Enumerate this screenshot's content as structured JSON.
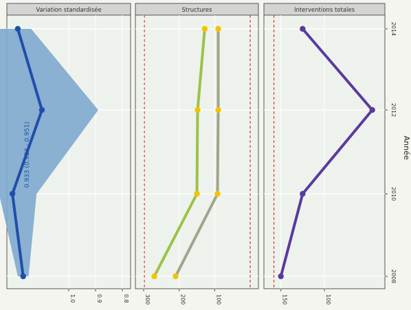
{
  "chart_data": [
    {
      "type": "line",
      "title": "Variation standardisée",
      "x_axis_title": "Année",
      "x_ticks": [
        "2008",
        "2010",
        "2012",
        "2014"
      ],
      "ylim": [
        0.8,
        1.2
      ],
      "y_ticks": [
        "1.0",
        "0.9",
        "0.8"
      ],
      "x": [
        "2008",
        "2010",
        "2012",
        "2014"
      ],
      "series": [
        {
          "values": [
            1.17,
            1.21,
            1.1,
            1.19
          ],
          "color": "#1f4fa8"
        }
      ],
      "band": {
        "lower": [
          1.15,
          1.12,
          0.89,
          1.14
        ],
        "upper": [
          1.19,
          1.26,
          1.3,
          1.28
        ],
        "color": "#7ea9cf"
      },
      "annotation": "0.933 (0.926 - 0.951)"
    },
    {
      "type": "line",
      "title": "Structures",
      "x_ticks": [
        "2008",
        "2010",
        "2012",
        "2014"
      ],
      "ylim": [
        0,
        300
      ],
      "y_ticks": [
        "100",
        "200",
        "300"
      ],
      "x": [
        "2008",
        "2010",
        "2012",
        "2014"
      ],
      "series": [
        {
          "values": [
            210,
            92,
            90,
            90
          ],
          "color": "#a0a48c",
          "marker_color": "#f2c400"
        },
        {
          "values": [
            270,
            150,
            148,
            128
          ],
          "color": "#9bc24b",
          "marker_color": "#f2c400"
        }
      ],
      "reference_lines": [
        {
          "value": 0,
          "color": "#d43a3a",
          "style": "dashed"
        },
        {
          "value": 298,
          "color": "#d43a3a",
          "style": "dashed"
        }
      ]
    },
    {
      "type": "line",
      "title": "Interventions totales",
      "x_ticks": [
        "2008",
        "2010",
        "2012",
        "2014"
      ],
      "ylim": [
        40,
        160
      ],
      "y_ticks": [
        "100",
        "150"
      ],
      "x": [
        "2008",
        "2010",
        "2012",
        "2014"
      ],
      "series": [
        {
          "values": [
            150,
            125,
            45,
            125
          ],
          "color": "#5a3aa0"
        }
      ],
      "reference_lines": [
        {
          "value": 158,
          "color": "#d43a3a",
          "style": "dashed"
        }
      ]
    }
  ],
  "colors": {
    "strip_bg": "#d4d4d4",
    "panel_bg": "#eef2ec",
    "grid": "#ffffff",
    "accent": "#1f4fa8"
  }
}
